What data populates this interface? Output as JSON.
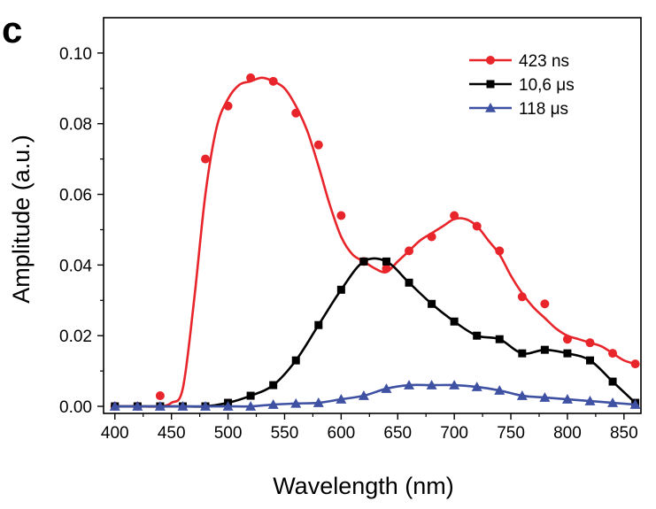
{
  "panel_label": "c",
  "chart_data": {
    "type": "line",
    "title": "",
    "xlabel": "Wavelength  (nm)",
    "ylabel": "Amplitude (a.u.)",
    "xlim": [
      390,
      865
    ],
    "ylim": [
      -0.002,
      0.11
    ],
    "xticks": [
      400,
      450,
      500,
      550,
      600,
      650,
      700,
      750,
      800,
      850
    ],
    "yticks": [
      0.0,
      0.02,
      0.04,
      0.06,
      0.08,
      0.1
    ],
    "ytick_labels": [
      "0.00",
      "0.02",
      "0.04",
      "0.06",
      "0.08",
      "0.10"
    ],
    "legend_position": "top-right",
    "series": [
      {
        "name": "423 ns",
        "color": "#e8252a",
        "marker": "circle",
        "x": [
          400,
          420,
          440,
          480,
          500,
          520,
          540,
          560,
          580,
          600,
          620,
          640,
          660,
          680,
          700,
          720,
          740,
          760,
          780,
          800,
          820,
          840,
          860
        ],
        "values": [
          0.0,
          0.0,
          0.003,
          0.07,
          0.085,
          0.093,
          0.092,
          0.083,
          0.074,
          0.054,
          0.041,
          0.039,
          0.044,
          0.048,
          0.054,
          0.051,
          0.044,
          0.031,
          0.029,
          0.019,
          0.018,
          0.015,
          0.012
        ],
        "curve_x": [
          400,
          420,
          440,
          450,
          460,
          470,
          480,
          490,
          500,
          510,
          520,
          530,
          540,
          550,
          560,
          570,
          580,
          590,
          600,
          610,
          620,
          630,
          640,
          650,
          660,
          670,
          680,
          690,
          700,
          710,
          720,
          730,
          740,
          750,
          760,
          770,
          780,
          790,
          800,
          810,
          820,
          830,
          840,
          850,
          860
        ],
        "curve_y": [
          0.0,
          0.0,
          0.0,
          0.001,
          0.005,
          0.03,
          0.06,
          0.079,
          0.087,
          0.091,
          0.092,
          0.093,
          0.092,
          0.09,
          0.085,
          0.078,
          0.068,
          0.057,
          0.048,
          0.043,
          0.041,
          0.039,
          0.038,
          0.041,
          0.044,
          0.047,
          0.049,
          0.051,
          0.053,
          0.053,
          0.051,
          0.047,
          0.043,
          0.037,
          0.032,
          0.028,
          0.025,
          0.022,
          0.02,
          0.019,
          0.018,
          0.017,
          0.015,
          0.013,
          0.012
        ]
      },
      {
        "name": "10,6 μs",
        "color": "#000000",
        "marker": "square",
        "x": [
          400,
          420,
          440,
          460,
          480,
          500,
          520,
          540,
          560,
          580,
          600,
          620,
          640,
          660,
          680,
          700,
          720,
          740,
          760,
          780,
          800,
          820,
          840,
          860
        ],
        "values": [
          0.0,
          0.0,
          0.0,
          0.0,
          0.0,
          0.001,
          0.003,
          0.006,
          0.013,
          0.023,
          0.033,
          0.041,
          0.041,
          0.035,
          0.029,
          0.024,
          0.02,
          0.019,
          0.015,
          0.016,
          0.015,
          0.013,
          0.007,
          0.001
        ]
      },
      {
        "name": "118 μs",
        "color": "#3f51a3",
        "marker": "triangle",
        "x": [
          400,
          420,
          440,
          460,
          480,
          500,
          520,
          540,
          560,
          580,
          600,
          620,
          640,
          660,
          680,
          700,
          720,
          740,
          760,
          780,
          800,
          820,
          840,
          860
        ],
        "values": [
          0.0,
          0.0,
          0.0,
          0.0,
          0.0,
          0.0,
          0.0,
          0.0005,
          0.0008,
          0.001,
          0.002,
          0.003,
          0.005,
          0.006,
          0.006,
          0.006,
          0.0055,
          0.0045,
          0.003,
          0.0025,
          0.002,
          0.0015,
          0.001,
          0.0005
        ]
      }
    ]
  }
}
